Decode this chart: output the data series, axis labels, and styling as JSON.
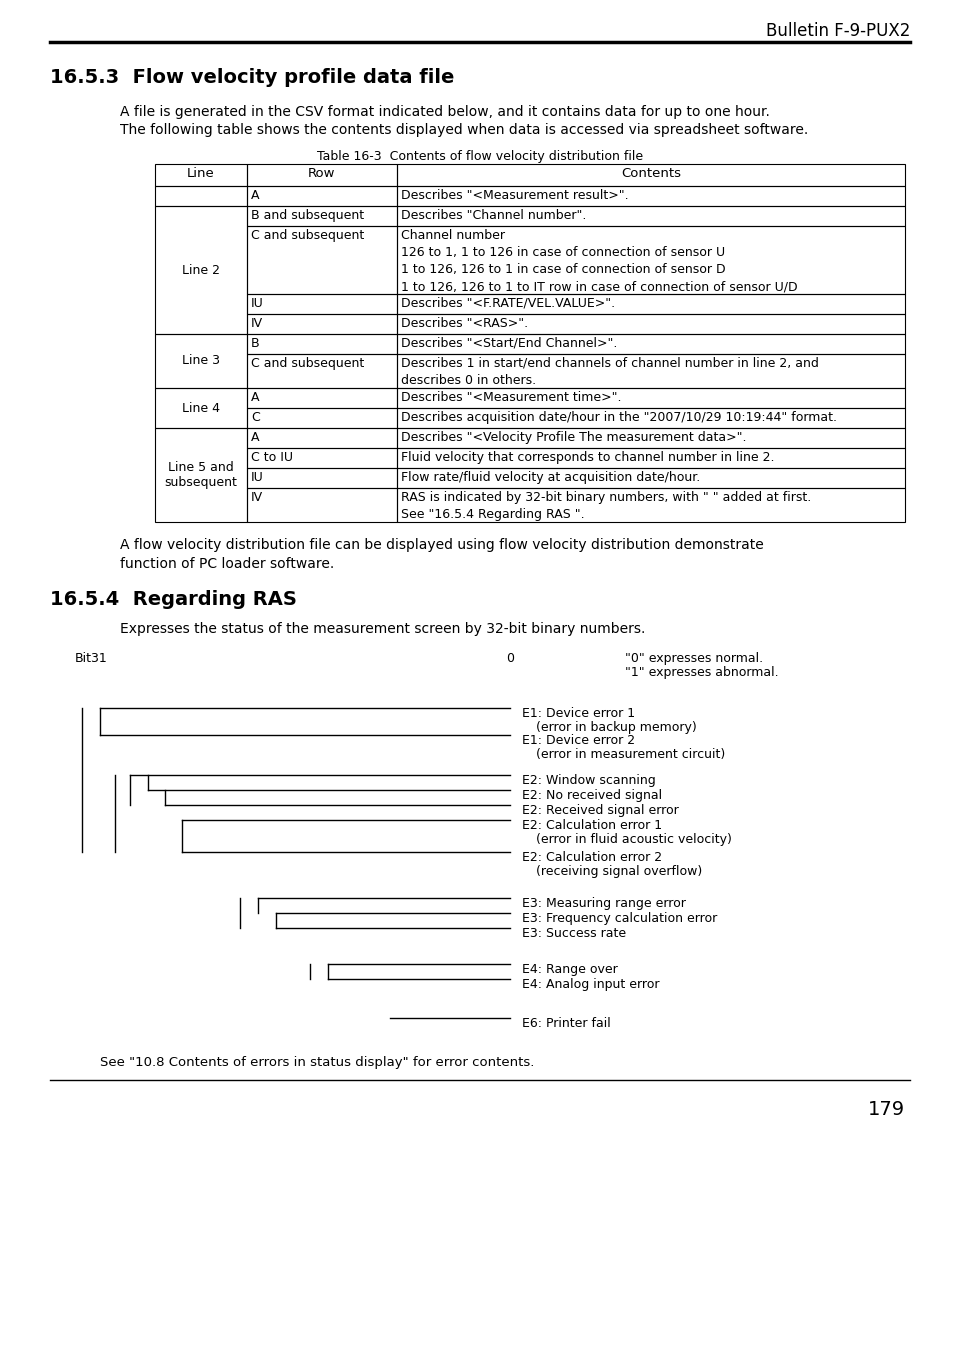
{
  "page_header": "Bulletin F-9-PUX2",
  "section_title": "16.5.3  Flow velocity profile data file",
  "section_body1": "A file is generated in the CSV format indicated below, and it contains data for up to one hour.",
  "section_body2": "The following table shows the contents displayed when data is accessed via spreadsheet software.",
  "table_caption": "Table 16-3  Contents of flow velocity distribution file",
  "section_body3": "A flow velocity distribution file can be displayed using flow velocity distribution demonstrate\nfunction of PC loader software.",
  "section2_title": "16.5.4  Regarding RAS",
  "section2_body": "Expresses the status of the measurement screen by 32-bit binary numbers.",
  "diagram_label_left": "Bit31",
  "diagram_label_mid": "0",
  "diagram_label_right1": "\"0\" expresses normal.",
  "diagram_label_right2": "\"1\" expresses abnormal.",
  "diagram_annotations": [
    [
      "E1: Device error 1",
      "(error in backup memory)"
    ],
    [
      "E1: Device error 2",
      "(error in measurement circuit)"
    ],
    [
      "E2: Window scanning",
      null
    ],
    [
      "E2: No received signal",
      null
    ],
    [
      "E2: Received signal error",
      null
    ],
    [
      "E2: Calculation error 1",
      "(error in fluid acoustic velocity)"
    ],
    [
      "E2: Calculation error 2",
      "(receiving signal overflow)"
    ],
    [
      "E3: Measuring range error",
      null
    ],
    [
      "E3: Frequency calculation error",
      null
    ],
    [
      "E3: Success rate",
      null
    ],
    [
      "E4: Range over",
      null
    ],
    [
      "E4: Analog input error",
      null
    ],
    [
      "E6: Printer fail",
      null
    ]
  ],
  "footer_note": "See \"10.8 Contents of errors in status display\" for error contents.",
  "page_number": "179",
  "bg_color": "#ffffff",
  "text_color": "#000000",
  "row_specs": [
    [
      "",
      "A",
      "Describes \"<Measurement result>\".",
      20
    ],
    [
      "",
      "B and subsequent",
      "Describes \"Channel number\".",
      20
    ],
    [
      "Line 2",
      "C and subsequent",
      "Channel number\n126 to 1, 1 to 126 in case of connection of sensor U\n1 to 126, 126 to 1 in case of connection of sensor D\n1 to 126, 126 to 1 to IT row in case of connection of sensor U/D",
      68
    ],
    [
      "",
      "IU",
      "Describes \"<F.RATE/VEL.VALUE>\".",
      20
    ],
    [
      "",
      "IV",
      "Describes \"<RAS>\".",
      20
    ],
    [
      "Line 3",
      "B",
      "Describes \"<Start/End Channel>\".",
      20
    ],
    [
      "Line 3",
      "C and subsequent",
      "Describes 1 in start/end channels of channel number in line 2, and\ndescribes 0 in others.",
      34
    ],
    [
      "Line 4",
      "A",
      "Describes \"<Measurement time>\".",
      20
    ],
    [
      "Line 4",
      "C",
      "Describes acquisition date/hour in the \"2007/10/29 10:19:44\" format.",
      20
    ],
    [
      "Line 5 and\nsubsequent",
      "A",
      "Describes \"<Velocity Profile The measurement data>\".",
      20
    ],
    [
      "Line 5 and\nsubsequent",
      "C to IU",
      "Fluid velocity that corresponds to channel number in line 2.",
      20
    ],
    [
      "Line 5 and\nsubsequent",
      "IU",
      "Flow rate/fluid velocity at acquisition date/hour.",
      20
    ],
    [
      "Line 5 and\nsubsequent",
      "IV",
      "RAS is indicated by 32-bit binary numbers, with \" \" added at first.\nSee \"16.5.4 Regarding RAS \".",
      34
    ]
  ],
  "line_merge_groups": [
    [
      0,
      0,
      ""
    ],
    [
      1,
      4,
      "Line 2"
    ],
    [
      5,
      6,
      "Line 3"
    ],
    [
      7,
      8,
      "Line 4"
    ],
    [
      9,
      12,
      "Line 5 and\nsubsequent"
    ]
  ]
}
